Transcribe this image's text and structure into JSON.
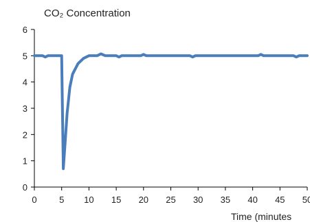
{
  "chart_data": {
    "type": "line",
    "title": "CO₂ Concentration",
    "xlabel": "Time (minutes",
    "ylabel": "",
    "xlim": [
      0,
      50
    ],
    "ylim": [
      0,
      6
    ],
    "x_ticks": [
      0,
      5,
      10,
      15,
      20,
      25,
      30,
      35,
      40,
      45,
      50
    ],
    "y_ticks": [
      0,
      1,
      2,
      3,
      4,
      5,
      6
    ],
    "grid": false,
    "legend": "none",
    "series": [
      {
        "color": "#4a7ebb",
        "x": [
          0,
          1.5,
          2,
          2.5,
          4.5,
          5,
          5.3,
          5.6,
          6.0,
          6.5,
          7.0,
          8.0,
          9.0,
          10.0,
          11.5,
          12.2,
          13.0,
          15.0,
          15.5,
          16.0,
          19.5,
          20.0,
          20.5,
          28.5,
          29.0,
          29.5,
          41.0,
          41.5,
          42.0,
          47.5,
          48.0,
          48.5,
          50
        ],
        "y": [
          5.0,
          5.0,
          4.95,
          5.0,
          5.0,
          5.0,
          0.7,
          1.6,
          2.8,
          3.8,
          4.3,
          4.7,
          4.9,
          5.0,
          5.0,
          5.07,
          5.0,
          5.0,
          4.95,
          5.0,
          5.0,
          5.05,
          5.0,
          5.0,
          4.95,
          5.0,
          5.0,
          5.05,
          5.0,
          5.0,
          4.95,
          5.0,
          5.0
        ]
      }
    ]
  }
}
